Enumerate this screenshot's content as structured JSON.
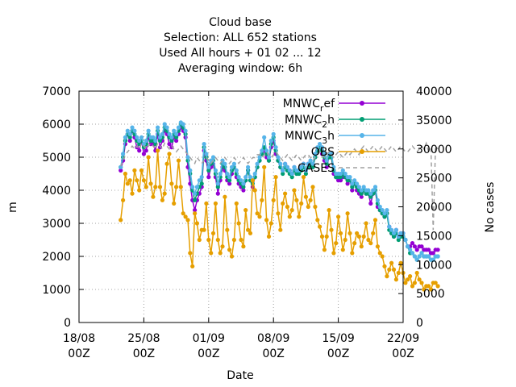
{
  "title_lines": [
    "Cloud base",
    "Selection: ALL    652 stations",
    "Used  All hours  + 01 02 ... 12",
    "Averaging window:  6h"
  ],
  "chart_data": {
    "type": "line",
    "xlabel": "Date",
    "ylabel": "m",
    "y2label": "No cases",
    "ylim": [
      0,
      7000
    ],
    "y2lim": [
      0,
      40000
    ],
    "yticks": [
      0,
      1000,
      2000,
      3000,
      4000,
      5000,
      6000,
      7000
    ],
    "y2ticks": [
      0,
      5000,
      10000,
      15000,
      20000,
      25000,
      30000,
      35000,
      40000
    ],
    "xlim_days": [
      0,
      35
    ],
    "xticks": [
      {
        "day": 0,
        "line1": "18/08",
        "line2": "00Z"
      },
      {
        "day": 7,
        "line1": "25/08",
        "line2": "00Z"
      },
      {
        "day": 14,
        "line1": "01/09",
        "line2": "00Z"
      },
      {
        "day": 21,
        "line1": "08/09",
        "line2": "00Z"
      },
      {
        "day": 28,
        "line1": "15/09",
        "line2": "00Z"
      },
      {
        "day": 35,
        "line1": "22/09",
        "line2": "00Z"
      }
    ],
    "grid": true,
    "legend_position": "top-right",
    "x_start_day": 4.5,
    "x_step_days": 0.25,
    "series": [
      {
        "name": "MNWC_ref",
        "legend_main": "MNWC",
        "legend_sub": "r",
        "legend_rest": "ef",
        "axis": "y",
        "color": "#9400d3",
        "marker": "circle",
        "values": [
          4600,
          4900,
          5400,
          5700,
          5500,
          5800,
          5600,
          5300,
          5200,
          5500,
          5100,
          5200,
          5600,
          5400,
          5400,
          5200,
          5700,
          5300,
          5500,
          5800,
          5700,
          5400,
          5300,
          5600,
          5500,
          5700,
          5900,
          5800,
          5600,
          4700,
          4200,
          3700,
          3400,
          3700,
          3900,
          4100,
          5200,
          4900,
          4400,
          4700,
          4800,
          4400,
          3900,
          4300,
          4700,
          4600,
          4300,
          4200,
          4500,
          4700,
          4400,
          4200,
          4100,
          4000,
          4300,
          4600,
          4300,
          4100,
          4400,
          4700,
          4900,
          5100,
          5200,
          5000,
          4900,
          5300,
          5500,
          5100,
          4900,
          4700,
          4600,
          4800,
          4700,
          4600,
          4500,
          4700,
          4500,
          4600,
          4700,
          4800,
          4600,
          4800,
          4800,
          4700,
          5000,
          5200,
          5300,
          5100,
          4900,
          4700,
          5000,
          5000,
          4500,
          4400,
          4300,
          4300,
          4400,
          4400,
          4200,
          4300,
          4000,
          4200,
          4000,
          3900,
          3800,
          4000,
          3900,
          3900,
          3600,
          3900,
          4000,
          3500,
          3400,
          3300,
          3200,
          3300,
          2900,
          2700,
          2600,
          2800,
          2600,
          2700,
          2700,
          2500,
          2300,
          2300,
          2400,
          2300,
          2200,
          2300,
          2300,
          2200,
          2200,
          2200,
          2100,
          2100,
          2200,
          2200
        ]
      },
      {
        "name": "MNWC_2h",
        "legend_main": "MNWC",
        "legend_sub": "2",
        "legend_rest": "h",
        "axis": "y",
        "color": "#009e73",
        "marker": "circle",
        "values": [
          4700,
          5000,
          5500,
          5700,
          5600,
          5800,
          5700,
          5500,
          5400,
          5500,
          5300,
          5400,
          5700,
          5500,
          5500,
          5400,
          5800,
          5500,
          5600,
          5900,
          5800,
          5600,
          5500,
          5700,
          5600,
          5800,
          6000,
          5900,
          5700,
          4900,
          4500,
          4000,
          3700,
          3900,
          4100,
          4200,
          5300,
          5000,
          4600,
          4800,
          4900,
          4500,
          4100,
          4400,
          4800,
          4700,
          4400,
          4300,
          4600,
          4700,
          4500,
          4300,
          4200,
          4100,
          4300,
          4600,
          4300,
          4200,
          4400,
          4700,
          4900,
          5100,
          5300,
          5100,
          4900,
          5400,
          5600,
          5200,
          4900,
          4700,
          4500,
          4700,
          4600,
          4500,
          4400,
          4600,
          4500,
          4500,
          4600,
          4700,
          4500,
          4700,
          4800,
          4700,
          5000,
          5200,
          5300,
          5200,
          5000,
          4800,
          5000,
          5000,
          4600,
          4400,
          4400,
          4400,
          4500,
          4400,
          4300,
          4300,
          4100,
          4200,
          4100,
          4000,
          3900,
          4000,
          3900,
          3900,
          3800,
          3900,
          4000,
          3600,
          3400,
          3300,
          3200,
          3300,
          2800,
          2700,
          2600,
          2700,
          2500,
          2600,
          2600,
          2500,
          2300,
          2100,
          2100,
          2000,
          1900,
          2000,
          2100,
          2000,
          2000,
          2000,
          1900,
          1900,
          2000,
          2000
        ]
      },
      {
        "name": "MNWC_3h",
        "legend_main": "MNWC",
        "legend_sub": "3",
        "legend_rest": "h",
        "axis": "y",
        "color": "#56b4e9",
        "marker": "circle",
        "values": [
          4700,
          5100,
          5600,
          5800,
          5700,
          5900,
          5800,
          5600,
          5500,
          5600,
          5400,
          5500,
          5800,
          5600,
          5600,
          5500,
          5900,
          5600,
          5700,
          6000,
          5900,
          5700,
          5600,
          5800,
          5700,
          5900,
          6050,
          6000,
          5800,
          5000,
          4600,
          4100,
          3900,
          4100,
          4300,
          4400,
          5400,
          5100,
          4700,
          4900,
          5000,
          4600,
          4200,
          4500,
          4900,
          4800,
          4500,
          4400,
          4700,
          4800,
          4600,
          4400,
          4300,
          4200,
          4400,
          4700,
          4400,
          4300,
          4500,
          4800,
          5000,
          5200,
          5600,
          5200,
          5000,
          5500,
          5700,
          5300,
          5000,
          4800,
          4600,
          4800,
          4700,
          4600,
          4500,
          4700,
          4600,
          4600,
          4700,
          4800,
          4600,
          4800,
          4900,
          4800,
          5100,
          5300,
          5400,
          5300,
          5100,
          4900,
          5100,
          5100,
          4700,
          4500,
          4500,
          4500,
          4600,
          4500,
          4400,
          4400,
          4200,
          4300,
          4200,
          4100,
          4000,
          4100,
          4000,
          4000,
          3900,
          4000,
          4100,
          3700,
          3500,
          3400,
          3300,
          3400,
          2900,
          2800,
          2700,
          2800,
          2600,
          2700,
          2700,
          2500,
          2300,
          2200,
          2100,
          2000,
          1900,
          2000,
          2100,
          2000,
          2000,
          2000,
          1900,
          1900,
          2000,
          2000
        ]
      },
      {
        "name": "OBS",
        "legend_main": "OBS",
        "legend_sub": "",
        "legend_rest": "",
        "axis": "y",
        "color": "#e69f00",
        "marker": "circle",
        "values": [
          3100,
          3700,
          4500,
          4200,
          4300,
          3900,
          4600,
          4300,
          4000,
          4600,
          4300,
          4100,
          5000,
          4200,
          3800,
          4100,
          5200,
          4100,
          3700,
          3900,
          4800,
          5100,
          4200,
          3600,
          4100,
          4900,
          4100,
          3300,
          3200,
          3100,
          2100,
          1700,
          3300,
          3000,
          2500,
          2800,
          2800,
          3600,
          2500,
          2100,
          2700,
          3600,
          2500,
          2100,
          2300,
          3800,
          2800,
          2200,
          2000,
          2500,
          3600,
          3000,
          2500,
          2300,
          3400,
          2800,
          2700,
          4300,
          4000,
          3300,
          3200,
          3700,
          4700,
          3100,
          2600,
          3000,
          3700,
          4400,
          3300,
          2800,
          3600,
          3900,
          3500,
          3200,
          3400,
          4000,
          3700,
          3200,
          3600,
          4400,
          3800,
          3500,
          3700,
          4100,
          3500,
          3100,
          2900,
          2600,
          2200,
          2600,
          3400,
          2800,
          2100,
          2400,
          3200,
          2700,
          2200,
          2500,
          3300,
          2700,
          2100,
          2400,
          2700,
          2600,
          2300,
          2600,
          3000,
          2500,
          2400,
          2700,
          3100,
          2300,
          2100,
          2000,
          1700,
          1400,
          1600,
          1800,
          1600,
          1300,
          1500,
          1800,
          1500,
          1200,
          1300,
          1400,
          1100,
          1200,
          1500,
          1300,
          1200,
          1000,
          1100,
          1100,
          1000,
          1200,
          1200,
          1100
        ]
      },
      {
        "name": "CASES",
        "legend_main": "CASES",
        "legend_sub": "",
        "legend_rest": "",
        "axis": "y2",
        "color": "#a0a0a0",
        "marker": "none",
        "dashed": true,
        "values": [
          27000,
          28000,
          29000,
          29500,
          30000,
          30500,
          30000,
          30500,
          30000,
          31000,
          30500,
          30000,
          30500,
          31000,
          30500,
          30000,
          31000,
          30500,
          30000,
          31000,
          30500,
          30000,
          30500,
          30000,
          29500,
          30000,
          30500,
          30000,
          29500,
          29000,
          28500,
          28000,
          27500,
          28500,
          28000,
          27500,
          28000,
          28500,
          28000,
          27500,
          28000,
          28500,
          28000,
          27500,
          28000,
          28500,
          28000,
          27500,
          28000,
          28500,
          28000,
          27500,
          28000,
          28500,
          28000,
          27500,
          28000,
          28500,
          28500,
          29000,
          29000,
          28500,
          29000,
          29500,
          29000,
          28500,
          29000,
          29500,
          29000,
          28500,
          28000,
          28500,
          29000,
          28500,
          28000,
          28500,
          29000,
          28500,
          28000,
          28500,
          29000,
          29000,
          28500,
          28000,
          28500,
          29000,
          29500,
          29000,
          28500,
          29000,
          29500,
          29000,
          28500,
          29000,
          29500,
          29000,
          28500,
          29000,
          29500,
          29000,
          29500,
          30000,
          29500,
          29000,
          30000,
          30500,
          30000,
          29500,
          30000,
          30500,
          30000,
          29500,
          30000,
          30500,
          30000,
          29500,
          30000,
          30500,
          30000,
          29500,
          30000,
          30500,
          30000,
          29500,
          29500,
          30000,
          30500,
          30000,
          29500,
          30000,
          30500,
          30000,
          31000,
          29500,
          30000,
          16000,
          30500,
          30000
        ]
      }
    ]
  }
}
